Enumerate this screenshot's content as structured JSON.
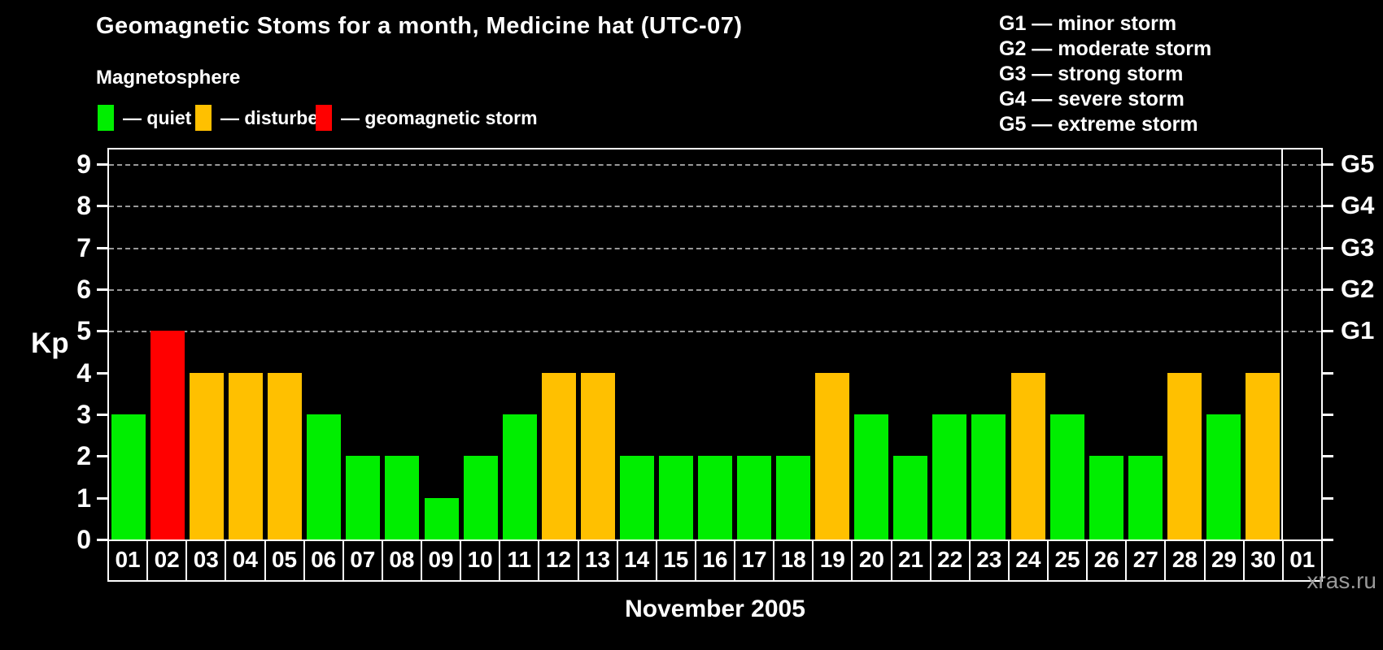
{
  "title": "Geomagnetic Stoms for a month, Medicine hat (UTC-07)",
  "legend": {
    "title": "Magnetosphere",
    "items": [
      {
        "name": "quiet",
        "label": "— quiet",
        "color": "#00ee00"
      },
      {
        "name": "disturbed",
        "label": "— disturbed",
        "color": "#ffc000"
      },
      {
        "name": "geomagnetic-storm",
        "label": "— geomagnetic storm",
        "color": "#ff0000"
      }
    ]
  },
  "g_scale_legend": [
    "G1 — minor storm",
    "G2 — moderate storm",
    "G3 — strong storm",
    "G4 — severe storm",
    "G5 — extreme storm"
  ],
  "footer": {
    "month_label": "November 2005",
    "watermark": "xras.ru"
  },
  "chart_data": {
    "type": "bar",
    "title": "Geomagnetic Stoms for a month, Medicine hat (UTC-07)",
    "xlabel": "November 2005",
    "ylabel": "Kp",
    "ylim": [
      0,
      9.35
    ],
    "y_ticks": [
      0,
      1,
      2,
      3,
      4,
      5,
      6,
      7,
      8,
      9
    ],
    "grid": "dashed horizontal gridlines at Kp 5,6,7,8,9",
    "legend_position": "top",
    "categories": [
      "01",
      "02",
      "03",
      "04",
      "05",
      "06",
      "07",
      "08",
      "09",
      "10",
      "11",
      "12",
      "13",
      "14",
      "15",
      "16",
      "17",
      "18",
      "19",
      "20",
      "21",
      "22",
      "23",
      "24",
      "25",
      "26",
      "27",
      "28",
      "29",
      "30",
      "01"
    ],
    "values": [
      3,
      5,
      4,
      4,
      4,
      3,
      2,
      2,
      1,
      2,
      3,
      4,
      4,
      2,
      2,
      2,
      2,
      2,
      4,
      3,
      2,
      3,
      3,
      4,
      3,
      2,
      2,
      4,
      3,
      4,
      null
    ],
    "last_category_note": "final 01 is next month's first day, empty slot separated by a vertical line",
    "color_rule": {
      "quiet_kp_max": 3,
      "disturbed_kp": 4,
      "storm_kp_min": 5
    },
    "colors": {
      "quiet": "#00ee00",
      "disturbed": "#ffc000",
      "storm": "#ff0000",
      "grid": "#999999",
      "axis": "#ffffff",
      "background": "#000000"
    },
    "right_axis": [
      {
        "label": "G1",
        "kp": 5
      },
      {
        "label": "G2",
        "kp": 6
      },
      {
        "label": "G3",
        "kp": 7
      },
      {
        "label": "G4",
        "kp": 8
      },
      {
        "label": "G5",
        "kp": 9
      }
    ]
  }
}
